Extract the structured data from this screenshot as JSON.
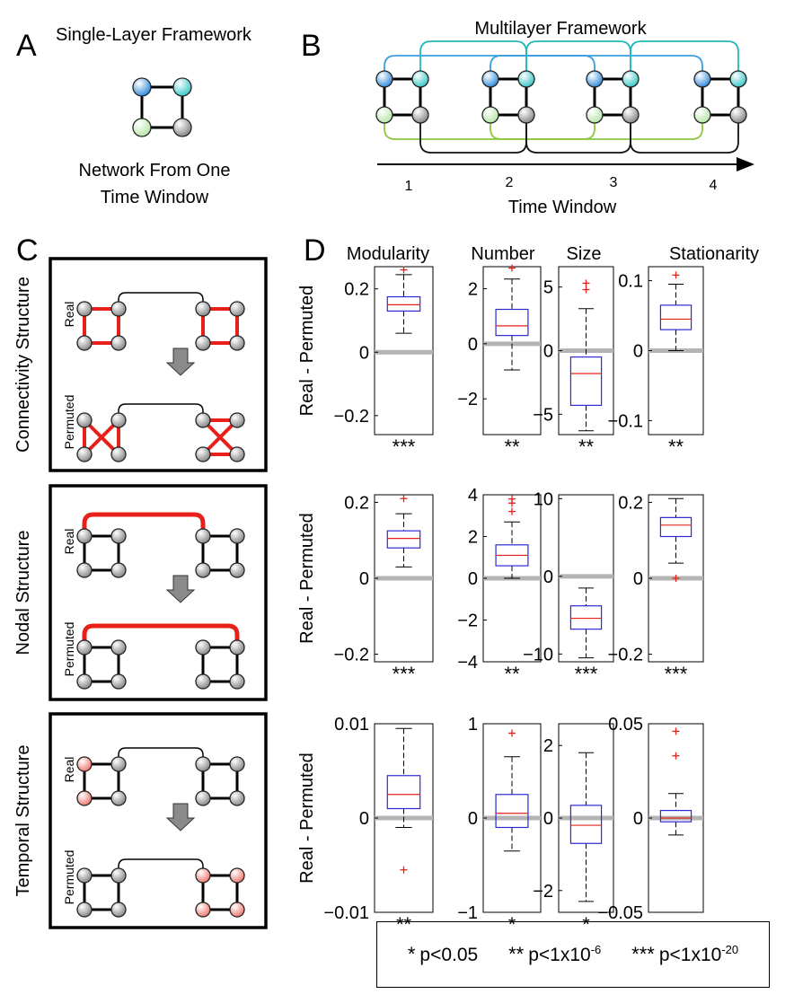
{
  "panels": {
    "A": {
      "letter": "A",
      "title": "Single-Layer Framework",
      "caption_lines": [
        "Network From One",
        "Time Window"
      ]
    },
    "B": {
      "letter": "B",
      "title": "Multilayer Framework",
      "time_ticks": [
        "1",
        "2",
        "3",
        "4"
      ],
      "axis_label": "Time Window"
    },
    "C": {
      "letter": "C",
      "groups": [
        {
          "title": "Connectivity Structure",
          "real": "Real",
          "permuted": "Permuted"
        },
        {
          "title": "Nodal Structure",
          "real": "Real",
          "permuted": "Permuted"
        },
        {
          "title": "Temporal Structure",
          "real": "Real",
          "permuted": "Permuted"
        }
      ]
    },
    "D": {
      "letter": "D"
    }
  },
  "colors": {
    "box": "#2b2bd6",
    "median": "#e8201a",
    "outlier": "#e8201a",
    "zero_line": "#b4b4b4",
    "node_blue": "#3a8fdb",
    "node_cyan": "#3fc9c9",
    "node_green": "#cfeec4",
    "node_gray": "#9a9a9a",
    "node_red": "#ef8a82",
    "edge_red": "#e8201a",
    "arc_blue": "#3a9ee0",
    "arc_cyan": "#22b8b8",
    "arc_green": "#8cc63f"
  },
  "chart_data": {
    "type": "box",
    "ylabel": "Real - Permuted",
    "columns": [
      "Modularity",
      "Number",
      "Size",
      "Stationarity"
    ],
    "rows": [
      {
        "structure": "Connectivity Structure",
        "plots": [
          {
            "column": "Modularity",
            "ylim": [
              -0.26,
              0.27
            ],
            "ticks": [
              0.2,
              0,
              -0.2
            ],
            "tick_labels": [
              "0.2",
              "0",
              "−0.2"
            ],
            "whisker_low": 0.06,
            "q1": 0.13,
            "median": 0.15,
            "q3": 0.175,
            "whisker_high": 0.245,
            "outliers": [
              0.26
            ],
            "significance": "***"
          },
          {
            "column": "Number",
            "ylim": [
              -3.3,
              2.8
            ],
            "ticks": [
              2,
              0,
              -2
            ],
            "tick_labels": [
              "2",
              "0",
              "−2"
            ],
            "whisker_low": -0.95,
            "q1": 0.3,
            "median": 0.65,
            "q3": 1.25,
            "whisker_high": 2.35,
            "outliers": [
              2.75
            ],
            "significance": "**"
          },
          {
            "column": "Size",
            "ylim": [
              -6.6,
              6.6
            ],
            "ticks": [
              5,
              0,
              -5
            ],
            "tick_labels": [
              "5",
              "0",
              "−5"
            ],
            "whisker_low": -6.3,
            "q1": -4.3,
            "median": -1.8,
            "q3": -0.5,
            "whisker_high": 3.3,
            "outliers": [
              4.8,
              5.3
            ],
            "significance": "**"
          },
          {
            "column": "Stationarity",
            "ylim": [
              -0.12,
              0.12
            ],
            "ticks": [
              0.1,
              0,
              -0.1
            ],
            "tick_labels": [
              "0.1",
              "0",
              "−0.1"
            ],
            "whisker_low": 0.0,
            "q1": 0.03,
            "median": 0.045,
            "q3": 0.065,
            "whisker_high": 0.095,
            "outliers": [
              0.108
            ],
            "significance": "**"
          }
        ]
      },
      {
        "structure": "Nodal Structure",
        "plots": [
          {
            "column": "Modularity",
            "ylim": [
              -0.22,
              0.22
            ],
            "ticks": [
              0.2,
              0,
              -0.2
            ],
            "tick_labels": [
              "0.2",
              "0",
              "−0.2"
            ],
            "whisker_low": 0.03,
            "q1": 0.08,
            "median": 0.105,
            "q3": 0.125,
            "whisker_high": 0.17,
            "outliers": [
              0.21
            ],
            "significance": "***"
          },
          {
            "column": "Number",
            "ylim": [
              -4,
              4
            ],
            "ticks": [
              4,
              2,
              0,
              -2,
              -4
            ],
            "tick_labels": [
              "4",
              "2",
              "0",
              "−2",
              "−4"
            ],
            "whisker_low": 0.0,
            "q1": 0.6,
            "median": 1.1,
            "q3": 1.6,
            "whisker_high": 2.7,
            "outliers": [
              3.2,
              3.6,
              3.8
            ],
            "significance": "**"
          },
          {
            "column": "Size",
            "ylim": [
              -11,
              10.5
            ],
            "ticks": [
              10,
              0,
              -10
            ],
            "tick_labels": [
              "10",
              "0",
              "−10"
            ],
            "whisker_low": -10.5,
            "q1": -6.8,
            "median": -5.4,
            "q3": -3.8,
            "whisker_high": -1.5,
            "outliers": [],
            "significance": "***"
          },
          {
            "column": "Stationarity",
            "ylim": [
              -0.22,
              0.22
            ],
            "ticks": [
              0.2,
              0,
              -0.2
            ],
            "tick_labels": [
              "0.2",
              "0",
              "−0.2"
            ],
            "whisker_low": 0.04,
            "q1": 0.11,
            "median": 0.14,
            "q3": 0.16,
            "whisker_high": 0.21,
            "outliers": [
              0.0
            ],
            "significance": "***"
          }
        ]
      },
      {
        "structure": "Temporal Structure",
        "plots": [
          {
            "column": "Modularity",
            "ylim": [
              -0.01,
              0.01
            ],
            "ticks": [
              0.01,
              0,
              -0.01
            ],
            "tick_labels": [
              "0.01",
              "0",
              "−0.01"
            ],
            "whisker_low": -0.001,
            "q1": 0.001,
            "median": 0.0025,
            "q3": 0.0045,
            "whisker_high": 0.0095,
            "outliers": [
              -0.0055
            ],
            "significance": "**"
          },
          {
            "column": "Number",
            "ylim": [
              -1,
              1
            ],
            "ticks": [
              1,
              0,
              -1
            ],
            "tick_labels": [
              "1",
              "0",
              "−1"
            ],
            "whisker_low": -0.35,
            "q1": -0.1,
            "median": 0.05,
            "q3": 0.25,
            "whisker_high": 0.65,
            "outliers": [
              0.9
            ],
            "significance": "*"
          },
          {
            "column": "Size",
            "ylim": [
              -2.6,
              2.6
            ],
            "ticks": [
              2,
              0,
              -2
            ],
            "tick_labels": [
              "2",
              "0",
              "−2"
            ],
            "whisker_low": -2.3,
            "q1": -0.7,
            "median": -0.2,
            "q3": 0.35,
            "whisker_high": 1.8,
            "outliers": [],
            "significance": "*"
          },
          {
            "column": "Stationarity",
            "ylim": [
              -0.05,
              0.05
            ],
            "ticks": [
              0.05,
              0,
              -0.05
            ],
            "tick_labels": [
              "0.05",
              "0",
              "−0.05"
            ],
            "whisker_low": -0.009,
            "q1": -0.002,
            "median": 0.0,
            "q3": 0.004,
            "whisker_high": 0.013,
            "outliers": [
              0.033,
              0.046
            ],
            "significance": ""
          }
        ]
      }
    ],
    "legend": [
      {
        "stars": "*",
        "text": "p<0.05",
        "exp": ""
      },
      {
        "stars": "**",
        "text": "p<1x10",
        "exp": "-6"
      },
      {
        "stars": "***",
        "text": "p<1x10",
        "exp": "-20"
      }
    ]
  }
}
